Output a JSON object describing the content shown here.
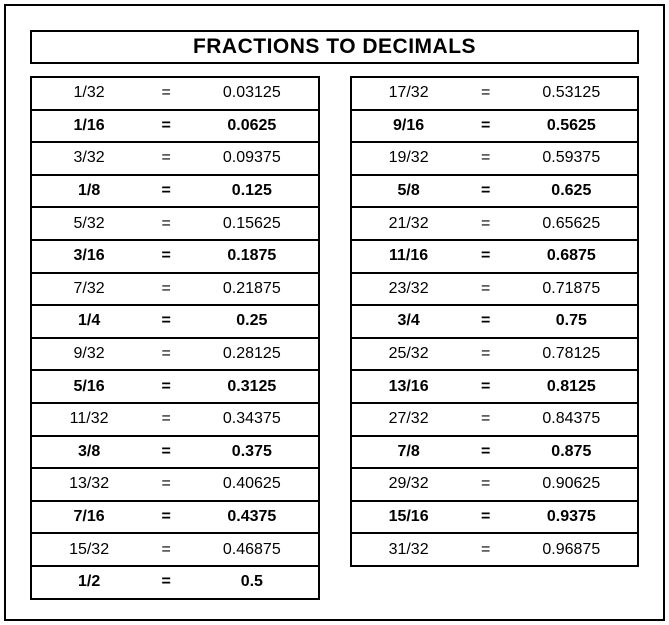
{
  "title": "FRACTIONS TO DECIMALS",
  "equals_label": "=",
  "rows_left": [
    {
      "fraction": "1/32",
      "decimal": "0.03125",
      "bold": false
    },
    {
      "fraction": "1/16",
      "decimal": "0.0625",
      "bold": true
    },
    {
      "fraction": "3/32",
      "decimal": "0.09375",
      "bold": false
    },
    {
      "fraction": "1/8",
      "decimal": "0.125",
      "bold": true
    },
    {
      "fraction": "5/32",
      "decimal": "0.15625",
      "bold": false
    },
    {
      "fraction": "3/16",
      "decimal": "0.1875",
      "bold": true
    },
    {
      "fraction": "7/32",
      "decimal": "0.21875",
      "bold": false
    },
    {
      "fraction": "1/4",
      "decimal": "0.25",
      "bold": true
    },
    {
      "fraction": "9/32",
      "decimal": "0.28125",
      "bold": false
    },
    {
      "fraction": "5/16",
      "decimal": "0.3125",
      "bold": true
    },
    {
      "fraction": "11/32",
      "decimal": "0.34375",
      "bold": false
    },
    {
      "fraction": "3/8",
      "decimal": "0.375",
      "bold": true
    },
    {
      "fraction": "13/32",
      "decimal": "0.40625",
      "bold": false
    },
    {
      "fraction": "7/16",
      "decimal": "0.4375",
      "bold": true
    },
    {
      "fraction": "15/32",
      "decimal": "0.46875",
      "bold": false
    },
    {
      "fraction": "1/2",
      "decimal": "0.5",
      "bold": true
    }
  ],
  "rows_right": [
    {
      "fraction": "17/32",
      "decimal": "0.53125",
      "bold": false
    },
    {
      "fraction": "9/16",
      "decimal": "0.5625",
      "bold": true
    },
    {
      "fraction": "19/32",
      "decimal": "0.59375",
      "bold": false
    },
    {
      "fraction": "5/8",
      "decimal": "0.625",
      "bold": true
    },
    {
      "fraction": "21/32",
      "decimal": "0.65625",
      "bold": false
    },
    {
      "fraction": "11/16",
      "decimal": "0.6875",
      "bold": true
    },
    {
      "fraction": "23/32",
      "decimal": "0.71875",
      "bold": false
    },
    {
      "fraction": "3/4",
      "decimal": "0.75",
      "bold": true
    },
    {
      "fraction": "25/32",
      "decimal": "0.78125",
      "bold": false
    },
    {
      "fraction": "13/16",
      "decimal": "0.8125",
      "bold": true
    },
    {
      "fraction": "27/32",
      "decimal": "0.84375",
      "bold": false
    },
    {
      "fraction": "7/8",
      "decimal": "0.875",
      "bold": true
    },
    {
      "fraction": "29/32",
      "decimal": "0.90625",
      "bold": false
    },
    {
      "fraction": "15/16",
      "decimal": "0.9375",
      "bold": true
    },
    {
      "fraction": "31/32",
      "decimal": "0.96875",
      "bold": false
    }
  ],
  "colors": {
    "foreground": "#000000",
    "background": "#ffffff"
  }
}
